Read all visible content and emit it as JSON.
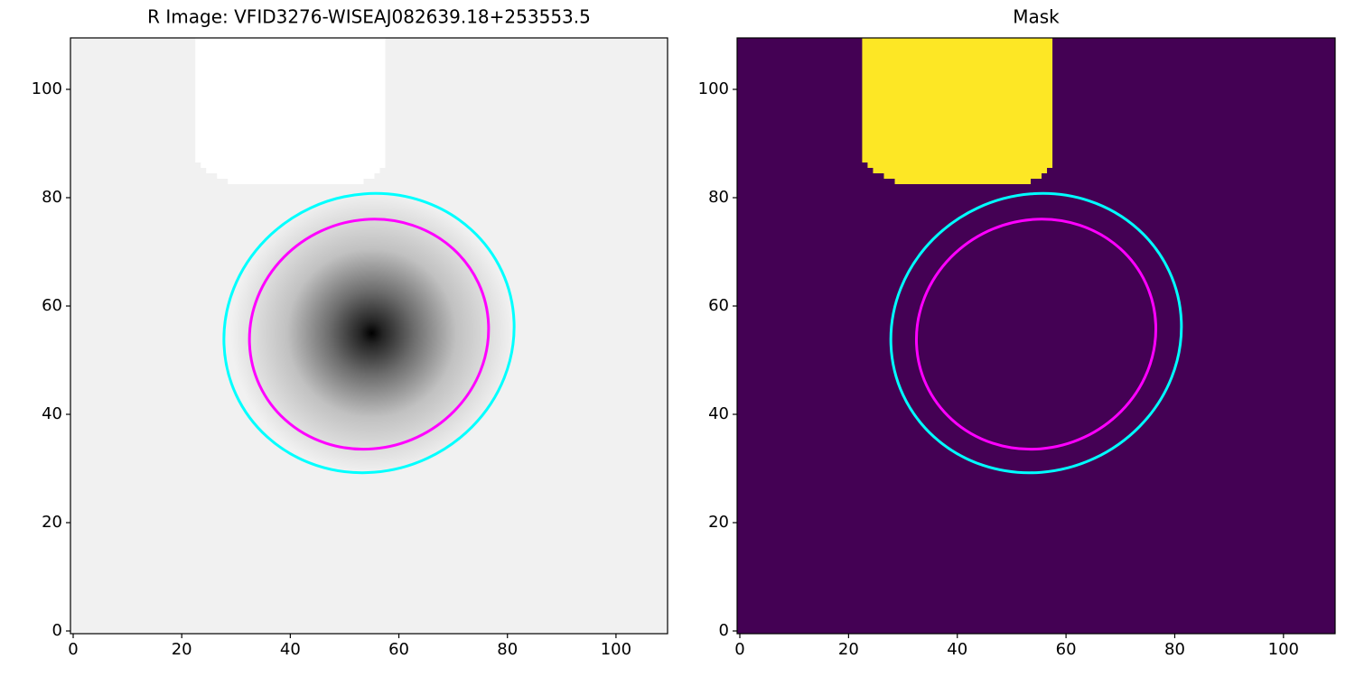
{
  "chart_data": [
    {
      "type": "image",
      "title": "R Image: VFID3276-WISEAJ082639.18+253553.5",
      "background": "#f1f1f1",
      "galaxy": {
        "center": [
          55,
          55
        ],
        "radius": 26,
        "color": "#000000"
      },
      "mask": {
        "color": "#ffffff",
        "x": [
          22.5,
          57.5,
          57.5,
          56.5,
          56.5,
          55.5,
          55.5,
          53.5,
          53.5,
          28.5,
          28.5,
          26.5,
          26.5,
          24.5,
          24.5,
          23.5,
          23.5,
          22.5
        ],
        "y": [
          109.5,
          109.5,
          85.5,
          85.5,
          84.5,
          84.5,
          83.5,
          83.5,
          82.5,
          82.5,
          83.5,
          83.5,
          84.5,
          84.5,
          85.5,
          85.5,
          86.5,
          86.5
        ]
      },
      "ellipses": [
        {
          "color": "#00ffff",
          "center": [
            54.5,
            55
          ],
          "width": 54,
          "height": 51,
          "angle": 25
        },
        {
          "color": "#ff00ff",
          "center": [
            54.5,
            54.8
          ],
          "width": 44.5,
          "height": 42,
          "angle": 25
        }
      ],
      "xlim": [
        -0.5,
        109.5
      ],
      "ylim": [
        -0.5,
        109.5
      ],
      "xticks": [
        0,
        20,
        40,
        60,
        80,
        100
      ],
      "yticks": [
        0,
        20,
        40,
        60,
        80,
        100
      ]
    },
    {
      "type": "image",
      "title": "Mask",
      "background": "#440154",
      "mask": {
        "color": "#fde725",
        "x": [
          22.5,
          57.5,
          57.5,
          56.5,
          56.5,
          55.5,
          55.5,
          53.5,
          53.5,
          28.5,
          28.5,
          26.5,
          26.5,
          24.5,
          24.5,
          23.5,
          23.5,
          22.5
        ],
        "y": [
          109.5,
          109.5,
          85.5,
          85.5,
          84.5,
          84.5,
          83.5,
          83.5,
          82.5,
          82.5,
          83.5,
          83.5,
          84.5,
          84.5,
          85.5,
          85.5,
          86.5,
          86.5
        ]
      },
      "ellipses": [
        {
          "color": "#00ffff",
          "center": [
            54.5,
            55
          ],
          "width": 54,
          "height": 51,
          "angle": 25
        },
        {
          "color": "#ff00ff",
          "center": [
            54.5,
            54.8
          ],
          "width": 44.5,
          "height": 42,
          "angle": 25
        }
      ],
      "xlim": [
        -0.5,
        109.5
      ],
      "ylim": [
        -0.5,
        109.5
      ],
      "xticks": [
        0,
        20,
        40,
        60,
        80,
        100
      ],
      "yticks": [
        0,
        20,
        40,
        60,
        80,
        100
      ]
    }
  ]
}
